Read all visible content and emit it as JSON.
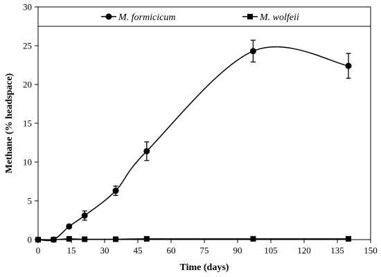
{
  "chart_data": {
    "type": "line",
    "xlabel": "Time (days)",
    "ylabel": "Methane (% headspace)",
    "xlim": [
      0,
      150
    ],
    "ylim": [
      0,
      30
    ],
    "xticks": [
      0,
      15,
      30,
      45,
      60,
      75,
      90,
      105,
      120,
      135,
      150
    ],
    "yticks": [
      0,
      5,
      10,
      15,
      20,
      25,
      30
    ],
    "grid": false,
    "legend_position": "top",
    "series": [
      {
        "name": "M. formicicum",
        "marker": "circle",
        "color": "#000000",
        "x": [
          0,
          7,
          14,
          21,
          35,
          49,
          97,
          140
        ],
        "y": [
          0,
          0,
          1.7,
          3.1,
          6.3,
          11.4,
          24.3,
          22.4
        ],
        "error": [
          0,
          0,
          0.2,
          0.6,
          0.6,
          1.2,
          1.4,
          1.6
        ]
      },
      {
        "name": "M. wolfeii",
        "marker": "square",
        "color": "#000000",
        "x": [
          0,
          7,
          14,
          21,
          35,
          49,
          97,
          140
        ],
        "y": [
          0,
          0,
          0.1,
          0.05,
          0.05,
          0.1,
          0.1,
          0.1
        ],
        "error": [
          0,
          0,
          0,
          0,
          0,
          0,
          0,
          0
        ]
      }
    ]
  }
}
